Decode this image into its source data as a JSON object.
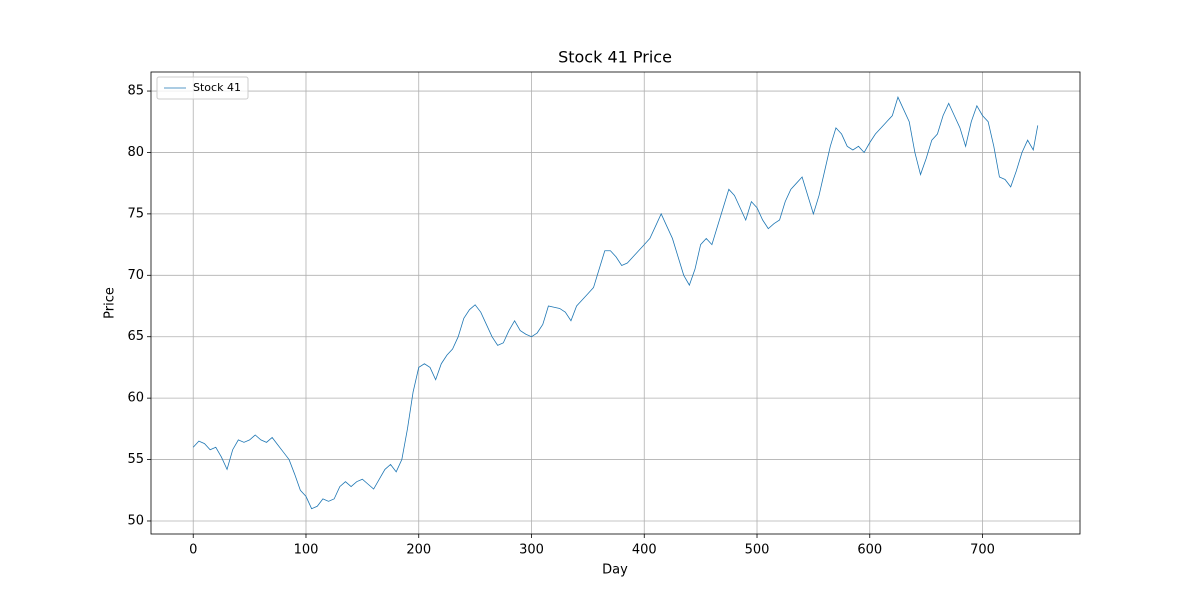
{
  "chart_data": {
    "type": "line",
    "title": "Stock 41 Price",
    "x_label": "Day",
    "y_label": "Price",
    "x": [
      0,
      5,
      10,
      15,
      20,
      25,
      30,
      35,
      40,
      45,
      50,
      55,
      60,
      65,
      70,
      75,
      80,
      85,
      90,
      95,
      100,
      105,
      110,
      115,
      120,
      125,
      130,
      135,
      140,
      145,
      150,
      155,
      160,
      165,
      170,
      175,
      180,
      185,
      190,
      195,
      200,
      205,
      210,
      215,
      220,
      225,
      230,
      235,
      240,
      245,
      250,
      255,
      260,
      265,
      270,
      275,
      280,
      285,
      290,
      295,
      300,
      305,
      310,
      315,
      320,
      325,
      330,
      335,
      340,
      345,
      350,
      355,
      360,
      365,
      370,
      375,
      380,
      385,
      390,
      395,
      400,
      405,
      410,
      415,
      420,
      425,
      430,
      435,
      440,
      445,
      450,
      455,
      460,
      465,
      470,
      475,
      480,
      485,
      490,
      495,
      500,
      505,
      510,
      515,
      520,
      525,
      530,
      535,
      540,
      545,
      550,
      555,
      560,
      565,
      570,
      575,
      580,
      585,
      590,
      595,
      600,
      605,
      610,
      615,
      620,
      625,
      630,
      635,
      640,
      645,
      650,
      655,
      660,
      665,
      670,
      675,
      680,
      685,
      690,
      695,
      700,
      705,
      710,
      715,
      720,
      725,
      730,
      735,
      740,
      745,
      749
    ],
    "series": [
      {
        "name": "Stock 41",
        "color": "#1f77b4",
        "values": [
          56.0,
          56.5,
          56.3,
          55.8,
          56.0,
          55.2,
          54.2,
          55.8,
          56.6,
          56.4,
          56.6,
          57.0,
          56.6,
          56.4,
          56.8,
          56.2,
          55.6,
          55.0,
          53.8,
          52.5,
          52.0,
          51.0,
          51.2,
          51.8,
          51.6,
          51.8,
          52.8,
          53.2,
          52.8,
          53.2,
          53.4,
          53.0,
          52.6,
          53.4,
          54.2,
          54.6,
          54.0,
          55.0,
          57.5,
          60.5,
          62.5,
          62.8,
          62.5,
          61.5,
          62.8,
          63.5,
          64.0,
          65.0,
          66.5,
          67.2,
          67.6,
          67.0,
          66.0,
          65.0,
          64.3,
          64.5,
          65.5,
          66.3,
          65.5,
          65.2,
          65.0,
          65.3,
          66.0,
          67.5,
          67.4,
          67.3,
          67.0,
          66.3,
          67.5,
          68.0,
          68.5,
          69.0,
          70.5,
          72.0,
          72.0,
          71.5,
          70.8,
          71.0,
          71.5,
          72.0,
          72.5,
          73.0,
          74.0,
          75.0,
          74.0,
          73.0,
          71.5,
          70.0,
          69.2,
          70.5,
          72.5,
          73.0,
          72.5,
          74.0,
          75.5,
          77.0,
          76.5,
          75.5,
          74.5,
          76.0,
          75.5,
          74.5,
          73.8,
          74.2,
          74.5,
          76.0,
          77.0,
          77.5,
          78.0,
          76.5,
          75.0,
          76.5,
          78.5,
          80.5,
          82.0,
          81.5,
          80.5,
          80.2,
          80.5,
          80.0,
          80.8,
          81.5,
          82.0,
          82.5,
          83.0,
          84.5,
          83.5,
          82.5,
          80.0,
          78.2,
          79.5,
          81.0,
          81.5,
          83.0,
          84.0,
          83.0,
          82.0,
          80.5,
          82.5,
          83.8,
          83.0,
          82.5,
          80.5,
          78.0,
          77.8,
          77.2,
          78.5,
          80.0,
          81.0,
          80.2,
          82.2
        ]
      }
    ],
    "xlim": [
      -37.45,
      786.45
    ],
    "xticks": [
      0,
      100,
      200,
      300,
      400,
      500,
      600,
      700
    ],
    "ylim": [
      48.94,
      86.55
    ],
    "yticks": [
      50,
      55,
      60,
      65,
      70,
      75,
      80,
      85
    ],
    "grid": true,
    "legend": "upper left"
  }
}
